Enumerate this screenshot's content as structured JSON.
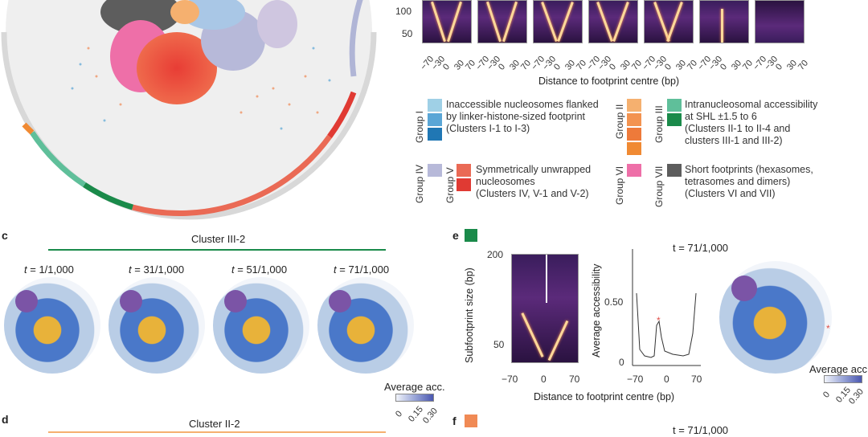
{
  "panel_labels": {
    "c": "c",
    "d": "d",
    "e": "e",
    "f": "f"
  },
  "top_right": {
    "y_ticks": [
      "100",
      "50"
    ],
    "x_ticks": [
      "−70",
      "−30",
      "0",
      "30",
      "70"
    ],
    "x_axis_label": "Distance to footprint centre (bp)"
  },
  "legend": {
    "group1": {
      "label": "Group I",
      "text": [
        "Inaccessible nucleosomes flanked",
        "by linker-histone-sized footprint",
        "(Clusters I-1 to I-3)"
      ],
      "colors": [
        "#9fd0e6",
        "#5aa6d6",
        "#2077b4"
      ]
    },
    "group2": {
      "label": "Group II",
      "colors": [
        "#f5b06f",
        "#f39350",
        "#ee7a3a",
        "#f08a33"
      ]
    },
    "group3": {
      "label": "Group III",
      "text": [
        "Intranucleosomal accessibility",
        "at SHL ±1.5 to 6",
        "(Clusters II-1 to II-4 and",
        "clusters III-1 and III-2)"
      ],
      "colors": [
        "#5fbf9a",
        "#1a8a4a"
      ]
    },
    "group4": {
      "label": "Group IV",
      "colors": [
        "#b7b9d9"
      ]
    },
    "group5": {
      "label": "Group V",
      "text": [
        "Symmetrically unwrapped",
        "nucleosomes",
        "(Clusters IV, V-1 and V-2)"
      ],
      "colors": [
        "#ea6a55",
        "#e03a33"
      ]
    },
    "group6": {
      "label": "Group VI",
      "colors": [
        "#ee6fa8"
      ]
    },
    "group7": {
      "label": "Group VII",
      "text": [
        "Short footprints (hexasomes,",
        "tetrasomes and dimers)",
        "(Clusters VI and VII)"
      ],
      "colors": [
        "#5d5d5d"
      ]
    }
  },
  "panel_c": {
    "cluster_title": "Cluster III-2",
    "line_color": "#1a8a4a",
    "timepoints": [
      {
        "t": "t",
        "val": " = 1/1,000"
      },
      {
        "t": "t",
        "val": " = 31/1,000"
      },
      {
        "t": "t",
        "val": " = 51/1,000"
      },
      {
        "t": "t",
        "val": " = 71/1,000"
      }
    ],
    "colorbar_label": "Average acc.",
    "colorbar_ticks": [
      "0",
      "0.15",
      "0.30"
    ]
  },
  "panel_d": {
    "cluster_title": "Cluster II-2"
  },
  "panel_e": {
    "swatch_color": "#1a8a4a",
    "timepoint": "t = 71/1,000",
    "heat_y_label": "Subfootprint size (bp)",
    "heat_y_ticks": [
      "200",
      "50"
    ],
    "heat_x_ticks": [
      "−70",
      "0",
      "70"
    ],
    "line_y_label": "Average accessibility",
    "line_y_ticks": [
      "0.50",
      "0"
    ],
    "line_x_ticks": [
      "−70",
      "0",
      "70"
    ],
    "x_axis_label": "Distance to footprint centre (bp)",
    "colorbar_label": "Average acc.",
    "colorbar_ticks": [
      "0",
      "0.15",
      "0.30"
    ],
    "star": "*"
  },
  "panel_f": {
    "swatch_color": "#f08a55",
    "timepoint": "t = 71/1,000"
  }
}
